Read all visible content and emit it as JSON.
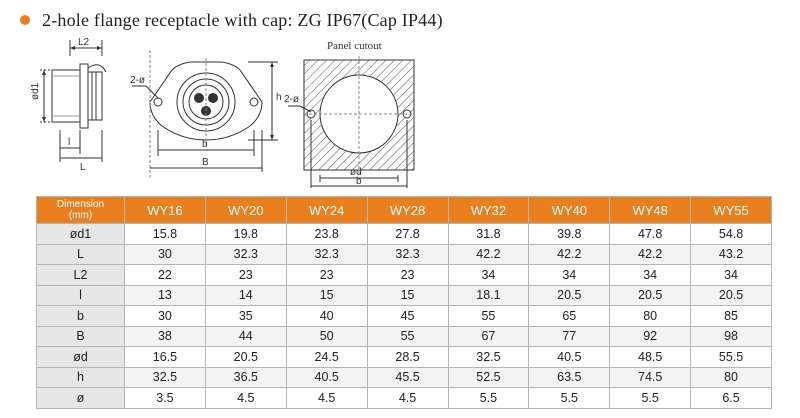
{
  "title": "2-hole flange receptacle with cap: ZG  IP67(Cap IP44)",
  "colors": {
    "accent": "#e8801f",
    "label_bg": "#e6e6e6"
  },
  "diagram": {
    "side_labels": {
      "l2": "L2",
      "d1": "ød1",
      "l_small": "l",
      "l": "L"
    },
    "front_labels": {
      "holes": "2-ø",
      "b_small": "b",
      "b_big": "B",
      "h": "h"
    },
    "cutout_labels": {
      "title": "Panel cutout",
      "holes": "2-ø",
      "d": "ød",
      "b": "b"
    }
  },
  "table": {
    "header_dimension": [
      "Dimension",
      "(mm)"
    ],
    "models": [
      "WY16",
      "WY20",
      "WY24",
      "WY28",
      "WY32",
      "WY40",
      "WY48",
      "WY55"
    ],
    "rows": [
      {
        "label": "ød1",
        "values": [
          "15.8",
          "19.8",
          "23.8",
          "27.8",
          "31.8",
          "39.8",
          "47.8",
          "54.8"
        ]
      },
      {
        "label": "L",
        "values": [
          "30",
          "32.3",
          "32.3",
          "32.3",
          "42.2",
          "42.2",
          "42.2",
          "43.2"
        ]
      },
      {
        "label": "L2",
        "values": [
          "22",
          "23",
          "23",
          "23",
          "34",
          "34",
          "34",
          "34"
        ]
      },
      {
        "label": "l",
        "values": [
          "13",
          "14",
          "15",
          "15",
          "18.1",
          "20.5",
          "20.5",
          "20.5"
        ]
      },
      {
        "label": "b",
        "values": [
          "30",
          "35",
          "40",
          "45",
          "55",
          "65",
          "80",
          "85"
        ]
      },
      {
        "label": "B",
        "values": [
          "38",
          "44",
          "50",
          "55",
          "67",
          "77",
          "92",
          "98"
        ]
      },
      {
        "label": "ød",
        "values": [
          "16.5",
          "20.5",
          "24.5",
          "28.5",
          "32.5",
          "40.5",
          "48.5",
          "55.5"
        ]
      },
      {
        "label": "h",
        "values": [
          "32.5",
          "36.5",
          "40.5",
          "45.5",
          "52.5",
          "63.5",
          "74.5",
          "80"
        ]
      },
      {
        "label": "ø",
        "values": [
          "3.5",
          "4.5",
          "4.5",
          "4.5",
          "5.5",
          "5.5",
          "5.5",
          "6.5"
        ]
      }
    ]
  }
}
